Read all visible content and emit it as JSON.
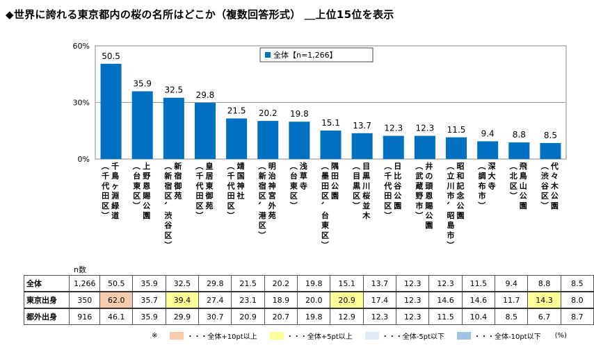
{
  "title": "◆世界に誇れる東京都内の桜の名所はどこか（複数回答形式） ＿上位15位を表示",
  "chart_data": {
    "type": "bar",
    "ylim": [
      0,
      60
    ],
    "yticks": [
      "0%",
      "30%",
      "60%"
    ],
    "bar_color": "#0070C0",
    "legend": "全体【n=1,266】",
    "nlabel": "n数",
    "categories": [
      "千鳥ヶ淵緑道（千代田区）",
      "上野恩賜公園（台東区）",
      "新宿御苑（新宿区、渋谷区）",
      "皇居東御苑（千代田区）",
      "靖国神社（千代田区）",
      "明治神宮外苑（新宿区、港区）",
      "浅草寺（台東区）",
      "隅田公園（墨田区、台東区）",
      "目黒川桜並木（目黒区）",
      "日比谷公園（千代田区）",
      "井の頭恩賜公園（武蔵野市）",
      "昭和記念公園（立川市、昭島市）",
      "深大寺（調布市）",
      "飛鳥山公園（北区）",
      "代々木公園（渋谷区）"
    ],
    "series": [
      {
        "name": "全体",
        "n": "1,266",
        "values": [
          50.5,
          35.9,
          32.5,
          29.8,
          21.5,
          20.2,
          19.8,
          15.1,
          13.7,
          12.3,
          12.3,
          11.5,
          9.4,
          8.8,
          8.5
        ]
      },
      {
        "name": "東京出身",
        "n": "350",
        "values": [
          62.0,
          35.7,
          39.4,
          27.4,
          23.1,
          18.9,
          20.0,
          20.9,
          17.4,
          12.3,
          14.6,
          14.6,
          11.7,
          14.3,
          8.0
        ]
      },
      {
        "name": "都外出身",
        "n": "916",
        "values": [
          46.1,
          35.9,
          29.9,
          30.7,
          20.9,
          20.7,
          19.8,
          12.9,
          12.3,
          12.3,
          11.5,
          10.4,
          8.5,
          6.7,
          8.7
        ]
      }
    ],
    "highlights": [
      {
        "series": 1,
        "index": 0,
        "level": "plus10"
      },
      {
        "series": 1,
        "index": 2,
        "level": "plus5"
      },
      {
        "series": 1,
        "index": 7,
        "level": "plus5"
      },
      {
        "series": 1,
        "index": 13,
        "level": "plus5"
      }
    ]
  },
  "notes": {
    "mark": "※",
    "items": [
      {
        "level": "plus10",
        "color": "#F8CBAD",
        "label": "・・・全体+10pt以上"
      },
      {
        "level": "plus5",
        "color": "#FFFF99",
        "label": "・・・全体+5pt以上"
      },
      {
        "level": "minus5",
        "color": "#DDEBF7",
        "label": "・・・全体-5pt以下"
      },
      {
        "level": "minus10",
        "color": "#9DC3E6",
        "label": "・・・全体-10pt以下"
      }
    ],
    "unit": "(%)"
  }
}
